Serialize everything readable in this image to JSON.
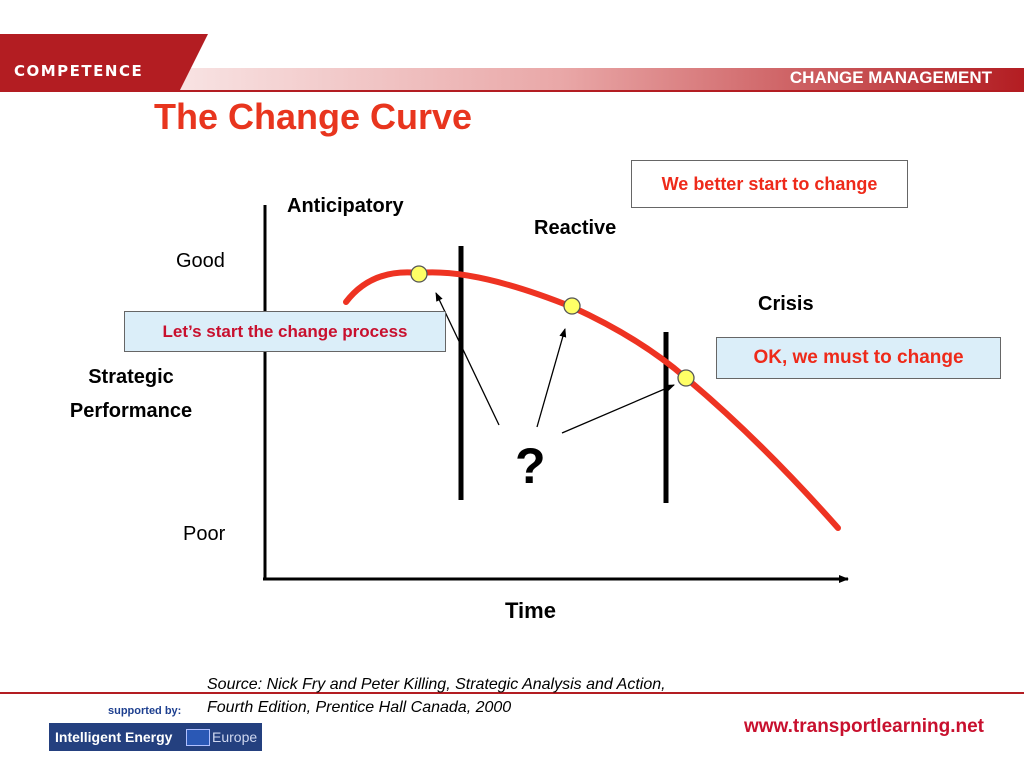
{
  "header": {
    "brand": "COMPETENCE",
    "section": "CHANGE MANAGEMENT"
  },
  "slide_title": "The Change Curve",
  "diagram": {
    "y_axis": {
      "top_label": "Good",
      "bottom_label": "Poor",
      "title_line1": "Strategic",
      "title_line2": "Performance"
    },
    "x_axis": {
      "label": "Time"
    },
    "phases": [
      "Anticipatory",
      "Reactive",
      "Crisis"
    ],
    "callouts": {
      "anticipatory": "Let’s start the change process",
      "reactive": "We better start to change",
      "crisis": "OK, we must to change"
    },
    "question_mark": "?",
    "colors": {
      "curve": "#ee3322",
      "marker_fill": "#ffff66",
      "box_fill": "#dbeef9",
      "title": "#e8351e"
    }
  },
  "footer": {
    "source_line1": "Source:  Nick Fry and Peter Killing, Strategic Analysis and Action,",
    "source_line2": "Fourth Edition, Prentice Hall Canada, 2000",
    "url": "www.transportlearning.net",
    "supported_by": "supported by:",
    "logo_text": "Intelligent Energy",
    "logo_text2": "Europe"
  }
}
